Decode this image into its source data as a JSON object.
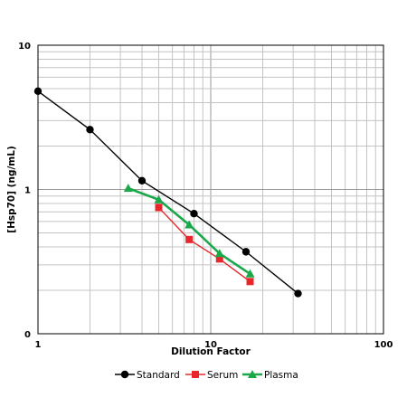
{
  "chart_data": {
    "type": "line",
    "title": "",
    "xlabel": "Dilution Factor",
    "ylabel": "[Hsp70] (ng/mL)",
    "x_scale": "log",
    "y_scale": "log",
    "xlim": [
      1,
      100
    ],
    "ylim": [
      0.1,
      10
    ],
    "x_ticks": [
      {
        "value": 1,
        "label": "1"
      },
      {
        "value": 10,
        "label": "10"
      },
      {
        "value": 100,
        "label": "100"
      }
    ],
    "y_ticks": [
      {
        "value": 0.1,
        "label": "0"
      },
      {
        "value": 1,
        "label": "1"
      },
      {
        "value": 10,
        "label": "10"
      }
    ],
    "grid": true,
    "legend_position": "bottom",
    "series": [
      {
        "name": "Standard",
        "color": "#000000",
        "marker": "circle",
        "x": [
          1,
          2,
          4,
          8,
          16,
          32
        ],
        "y": [
          4.8,
          2.6,
          1.15,
          0.68,
          0.37,
          0.19
        ]
      },
      {
        "name": "Serum",
        "color": "#e8262b",
        "marker": "square",
        "x": [
          5,
          7.5,
          11.25,
          16.9
        ],
        "y": [
          0.75,
          0.45,
          0.33,
          0.23
        ]
      },
      {
        "name": "Plasma",
        "color": "#1aa84b",
        "marker": "triangle",
        "x": [
          3.33,
          5,
          7.5,
          11.25,
          16.9
        ],
        "y": [
          1.02,
          0.85,
          0.57,
          0.36,
          0.26
        ]
      }
    ]
  }
}
